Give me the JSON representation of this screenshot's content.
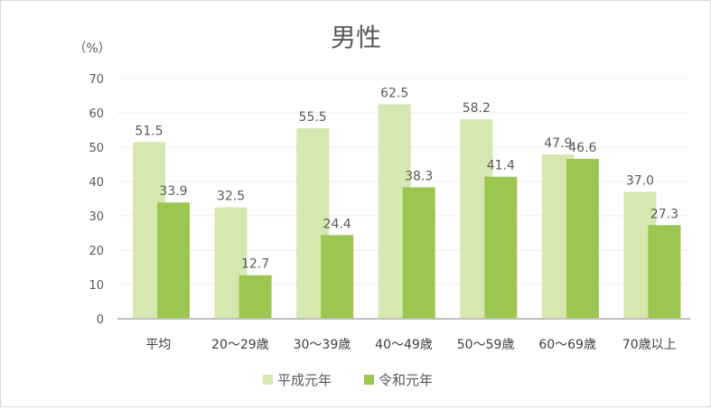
{
  "chart_data": {
    "type": "bar",
    "title": "男性",
    "ylabel": "（%）",
    "xlabel": "",
    "ylim": [
      0,
      70
    ],
    "yticks": [
      "0",
      "10",
      "20",
      "30",
      "40",
      "50",
      "60",
      "70"
    ],
    "grid": true,
    "legend_position": "bottom",
    "categories": [
      "平均",
      "20～29歳",
      "30～39歳",
      "40～49歳",
      "50～59歳",
      "60～69歳",
      "70歳以上"
    ],
    "series": [
      {
        "name": "平成元年",
        "color": "#d4e8b0",
        "values": [
          51.5,
          32.5,
          55.5,
          62.5,
          58.2,
          47.9,
          37.0
        ],
        "labels": [
          "51.5",
          "32.5",
          "55.5",
          "62.5",
          "58.2",
          "47.9",
          "37.0"
        ]
      },
      {
        "name": "令和元年",
        "color": "#9cc64f",
        "values": [
          33.9,
          12.7,
          24.4,
          38.3,
          41.4,
          46.6,
          27.3
        ],
        "labels": [
          "33.9",
          "12.7",
          "24.4",
          "38.3",
          "41.4",
          "46.6",
          "27.3"
        ]
      }
    ]
  }
}
